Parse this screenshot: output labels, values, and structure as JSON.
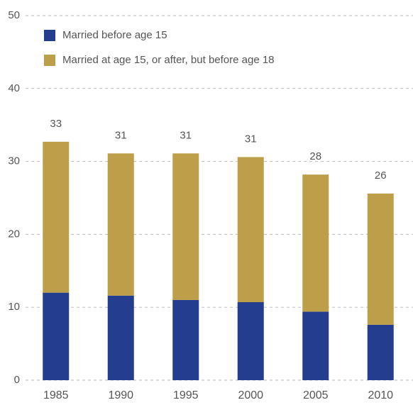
{
  "chart_data": {
    "type": "stacked_bar",
    "categories": [
      "1985",
      "1990",
      "1995",
      "2000",
      "2005",
      "2010"
    ],
    "series": [
      {
        "name": "Married before age 15",
        "color": "#253d8f",
        "values": [
          12.0,
          11.6,
          11.0,
          10.7,
          9.4,
          7.6
        ]
      },
      {
        "name": "Married at age 15, or after, but before age 18",
        "color": "#bd9f4a",
        "values": [
          20.7,
          19.5,
          20.1,
          19.9,
          18.8,
          18.0
        ]
      }
    ],
    "totals": [
      33,
      31,
      31,
      31,
      28,
      26
    ],
    "ylim": [
      0,
      50
    ],
    "yticks": [
      0,
      10,
      20,
      30,
      40,
      50
    ],
    "grid": true,
    "legend": "top-left"
  }
}
